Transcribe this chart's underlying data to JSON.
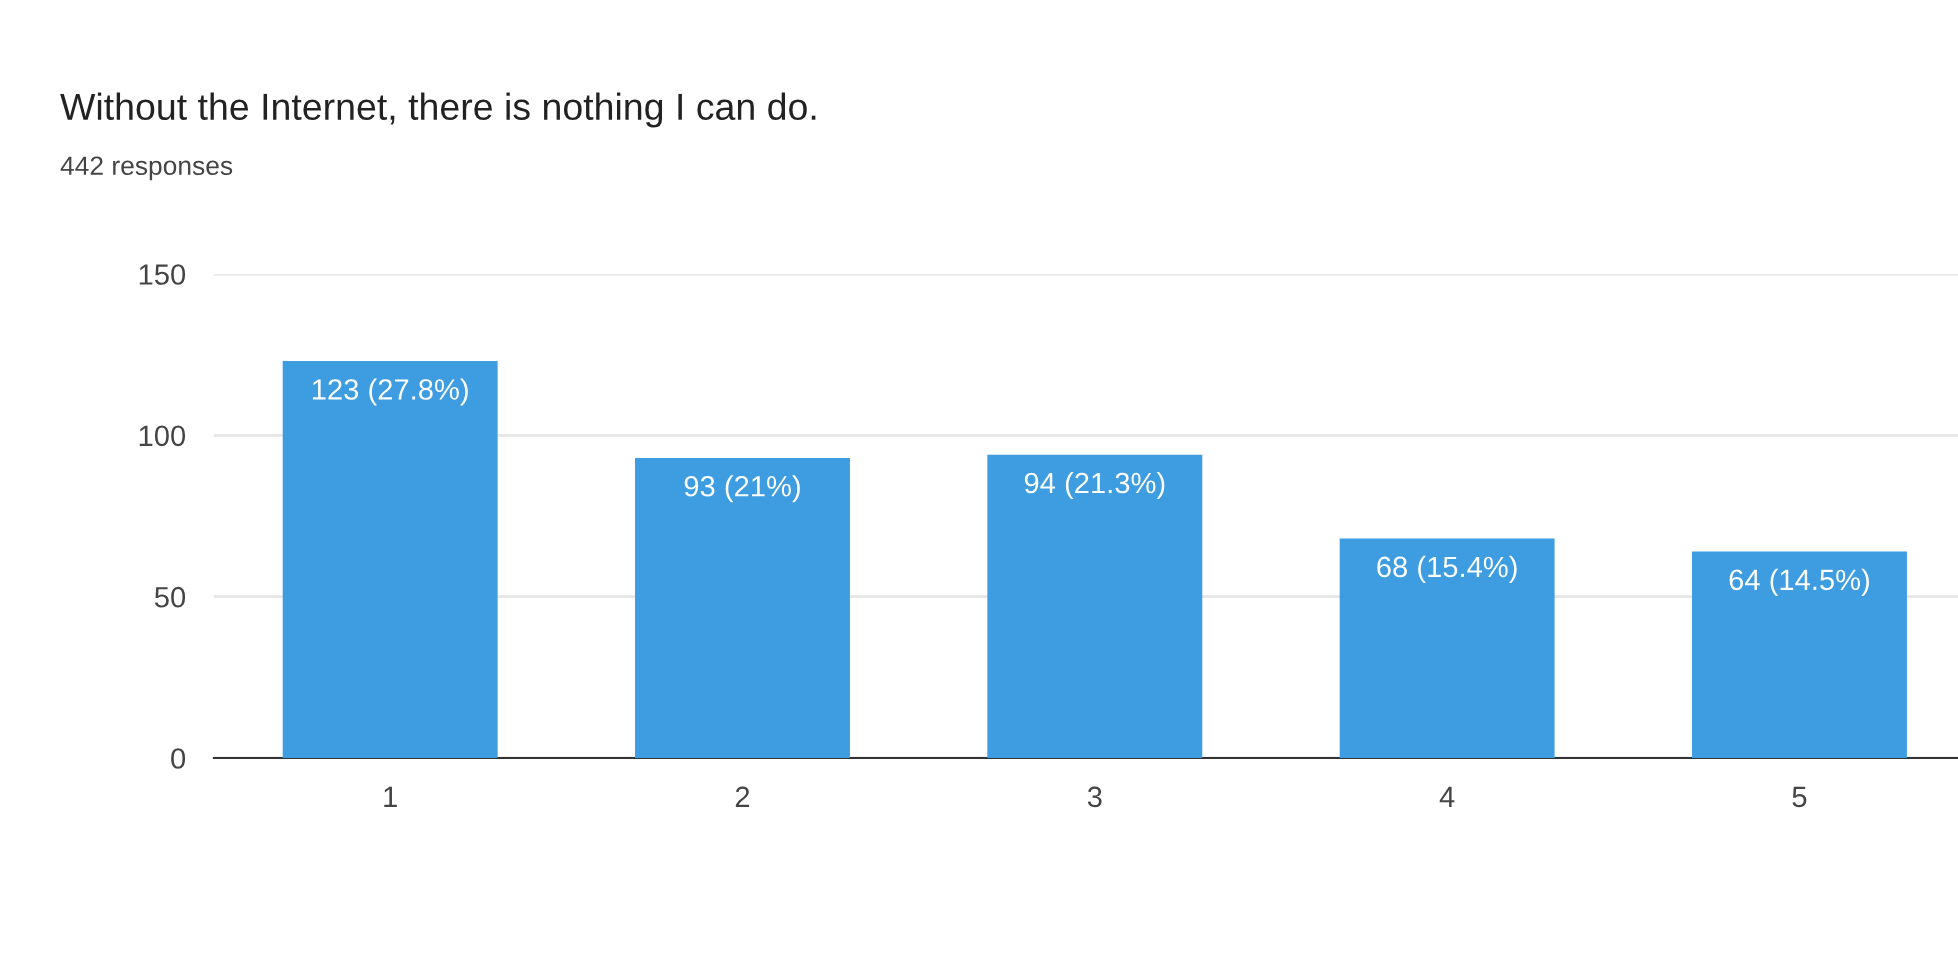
{
  "chart_data": {
    "type": "bar",
    "title": "Without the Internet, there is nothing I can do.",
    "subtitle": "442 responses",
    "categories": [
      "1",
      "2",
      "3",
      "4",
      "5"
    ],
    "values": [
      123,
      93,
      94,
      68,
      64
    ],
    "value_labels": [
      "123 (27.8%)",
      "93 (21%)",
      "94 (21.3%)",
      "68 (15.4%)",
      "64 (14.5%)"
    ],
    "color": "#3d9de0",
    "ylim": [
      0,
      150
    ],
    "yticks": [
      0,
      50,
      100,
      150
    ],
    "grid": "y",
    "legend": false
  }
}
